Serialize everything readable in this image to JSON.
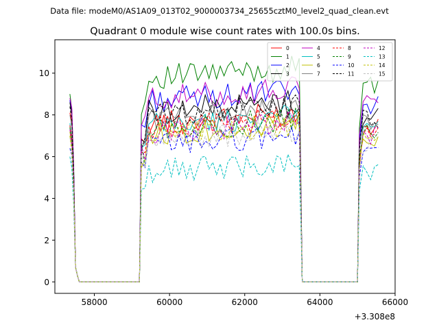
{
  "chart_data": {
    "type": "line",
    "suptitle": "Data file: modeM0/AS1A09_013T02_9000003734_25655cztM0_level2_quad_clean.evt",
    "title": "Quadrant 0 module wise count rates with 100.0s bins.",
    "xlabel": "",
    "ylabel": "",
    "x_offset_label": "+3.308e8",
    "xlim": [
      56950,
      66000
    ],
    "ylim": [
      -0.55,
      11.6
    ],
    "x_ticks": [
      58000,
      60000,
      62000,
      64000,
      66000
    ],
    "x_tick_labels": [
      "58000",
      "60000",
      "62000",
      "64000",
      "66000"
    ],
    "y_ticks": [
      0,
      2,
      4,
      6,
      8,
      10
    ],
    "y_tick_labels": [
      "0",
      "2",
      "4",
      "6",
      "8",
      "10"
    ],
    "grid": false,
    "legend_position": "top-right",
    "segments": [
      {
        "start": 57350,
        "end": 57750,
        "step": 50
      },
      {
        "start": 59200,
        "end": 63450,
        "step": 100
      },
      {
        "start": 65000,
        "end": 65600,
        "step": 100
      }
    ],
    "gaps": [
      {
        "from": 57750,
        "to": 59200
      },
      {
        "from": 63450,
        "to": 65000
      }
    ],
    "series": [
      {
        "name": "0",
        "color": "#ff0000",
        "dash": false,
        "level": 7.8,
        "start_level": 8.1
      },
      {
        "name": "1",
        "color": "#008000",
        "dash": false,
        "level": 10.0,
        "start_level": 9.0
      },
      {
        "name": "2",
        "color": "#0000ff",
        "dash": false,
        "level": 8.9,
        "start_level": 8.7
      },
      {
        "name": "3",
        "color": "#000000",
        "dash": false,
        "level": 8.4,
        "start_level": 8.6
      },
      {
        "name": "4",
        "color": "#bf00bf",
        "dash": false,
        "level": 9.0,
        "start_level": 8.8
      },
      {
        "name": "5",
        "color": "#00bfbf",
        "dash": false,
        "level": 7.7,
        "start_level": 7.6
      },
      {
        "name": "6",
        "color": "#bfbf00",
        "dash": false,
        "level": 7.3,
        "start_level": 7.2
      },
      {
        "name": "7",
        "color": "#808080",
        "dash": false,
        "level": 8.1,
        "start_level": 8.0
      },
      {
        "name": "8",
        "color": "#ff0000",
        "dash": true,
        "level": 7.6,
        "start_level": 7.5
      },
      {
        "name": "9",
        "color": "#008000",
        "dash": true,
        "level": 7.5,
        "start_level": 7.4
      },
      {
        "name": "10",
        "color": "#0000ff",
        "dash": true,
        "level": 6.8,
        "start_level": 6.4
      },
      {
        "name": "11",
        "color": "#000000",
        "dash": true,
        "level": 8.2,
        "start_level": 8.4
      },
      {
        "name": "12",
        "color": "#bf00bf",
        "dash": true,
        "level": 7.4,
        "start_level": 7.3
      },
      {
        "name": "13",
        "color": "#00bfbf",
        "dash": true,
        "level": 5.5,
        "start_level": 6.0
      },
      {
        "name": "14",
        "color": "#bfbf00",
        "dash": true,
        "level": 7.2,
        "start_level": 7.0
      },
      {
        "name": "15",
        "color": "#bfbfbf",
        "dash": true,
        "level": 7.0,
        "start_level": 6.9
      }
    ]
  }
}
